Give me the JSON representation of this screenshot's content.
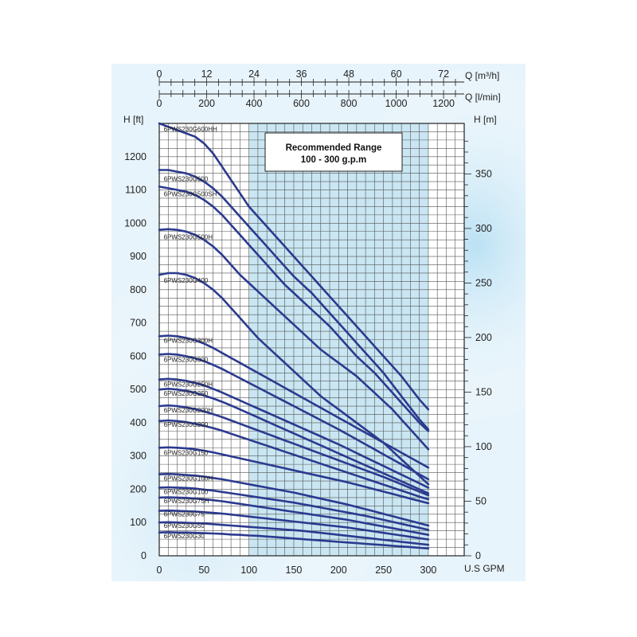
{
  "chart_data": {
    "type": "line",
    "x": [
      0,
      10,
      20,
      30,
      40,
      50,
      60,
      70,
      80,
      90,
      100,
      110,
      120,
      130,
      140,
      150,
      160,
      170,
      180,
      190,
      200,
      210,
      220,
      230,
      240,
      250,
      260,
      270,
      280,
      290,
      300,
      310,
      318
    ],
    "xlabel": "U.S GPM",
    "ylabel": "H [ft]",
    "y2label": "H [m]",
    "top_axis_m3h_label": "Q [m³/h]",
    "top_axis_lmin_label": "Q [l/min]",
    "xlim": [
      0,
      340
    ],
    "ylim": [
      0,
      1300
    ],
    "x_ticks": [
      "0",
      "50",
      "100",
      "150",
      "200",
      "250",
      "300"
    ],
    "y_ticks": [
      "0",
      "100",
      "200",
      "300",
      "400",
      "500",
      "600",
      "700",
      "800",
      "900",
      "1000",
      "1100",
      "1200"
    ],
    "y2_ticks": [
      "0",
      "50",
      "100",
      "150",
      "200",
      "250",
      "300",
      "350"
    ],
    "top_m3h_ticks": [
      "0",
      "12",
      "24",
      "36",
      "48",
      "60",
      "72"
    ],
    "top_lmin_ticks": [
      "0",
      "200",
      "400",
      "600",
      "800",
      "1000",
      "1200"
    ],
    "recommended_range": {
      "title": "Recommended Range",
      "subtitle": "100 - 300 g.p.m",
      "x_range": [
        100,
        300
      ],
      "fill_color": "#c9e6f2"
    },
    "grid": true,
    "line_color": "#2b3a8f",
    "series": [
      {
        "name": "6PWS230G600HH",
        "values": [
          1300,
          1290,
          1280,
          1270,
          1260,
          1240,
          1210,
          1170,
          1130,
          1090,
          1050,
          1020,
          990,
          960,
          930,
          900,
          870,
          840,
          810,
          780,
          750,
          720,
          690,
          660,
          630,
          600,
          570,
          540,
          505,
          470,
          440,
          null,
          null
        ]
      },
      {
        "name": "6PWS230G600",
        "values": [
          1160,
          1160,
          1155,
          1150,
          1140,
          1125,
          1105,
          1080,
          1050,
          1020,
          990,
          960,
          930,
          900,
          870,
          840,
          815,
          790,
          760,
          730,
          700,
          670,
          640,
          610,
          580,
          550,
          515,
          480,
          445,
          410,
          380,
          null,
          null
        ]
      },
      {
        "name": "6PWS230G500SH",
        "values": [
          1110,
          1105,
          1100,
          1095,
          1085,
          1070,
          1050,
          1025,
          995,
          965,
          935,
          905,
          875,
          845,
          815,
          790,
          765,
          740,
          715,
          690,
          660,
          630,
          600,
          575,
          550,
          520,
          490,
          460,
          430,
          400,
          375,
          null,
          null
        ]
      },
      {
        "name": "6PWS230G500H",
        "values": [
          980,
          982,
          980,
          975,
          965,
          950,
          930,
          905,
          875,
          845,
          820,
          795,
          770,
          745,
          720,
          695,
          670,
          645,
          620,
          600,
          580,
          560,
          540,
          515,
          490,
          465,
          440,
          410,
          380,
          350,
          320,
          null,
          null
        ]
      },
      {
        "name": "6PWS230G400",
        "values": [
          845,
          850,
          850,
          845,
          835,
          820,
          800,
          775,
          745,
          715,
          685,
          655,
          630,
          605,
          580,
          555,
          530,
          505,
          480,
          460,
          440,
          420,
          400,
          380,
          360,
          340,
          315,
          290,
          265,
          240,
          215,
          null,
          null
        ]
      },
      {
        "name": "6PWS230G300H",
        "values": [
          660,
          662,
          660,
          655,
          648,
          638,
          625,
          610,
          595,
          580,
          565,
          550,
          535,
          520,
          505,
          490,
          475,
          460,
          445,
          430,
          415,
          400,
          385,
          370,
          355,
          340,
          325,
          310,
          295,
          280,
          265,
          null,
          null
        ]
      },
      {
        "name": "6PWS230G300",
        "values": [
          605,
          607,
          605,
          600,
          594,
          585,
          574,
          562,
          548,
          534,
          520,
          506,
          492,
          478,
          464,
          450,
          436,
          422,
          408,
          394,
          380,
          365,
          350,
          335,
          320,
          305,
          290,
          275,
          260,
          245,
          230,
          null,
          null
        ]
      },
      {
        "name": "6PWS230G250H",
        "values": [
          530,
          532,
          530,
          526,
          520,
          512,
          502,
          491,
          479,
          467,
          455,
          443,
          431,
          419,
          407,
          395,
          383,
          371,
          359,
          347,
          335,
          322,
          309,
          296,
          283,
          270,
          257,
          244,
          231,
          218,
          205,
          null,
          null
        ]
      },
      {
        "name": "6PWS230G250",
        "values": [
          500,
          502,
          500,
          496,
          490,
          482,
          473,
          463,
          452,
          440,
          428,
          416,
          404,
          392,
          380,
          368,
          356,
          344,
          332,
          320,
          308,
          296,
          284,
          272,
          260,
          248,
          236,
          224,
          212,
          200,
          188,
          null,
          null
        ]
      },
      {
        "name": "6PWS230G200H",
        "values": [
          450,
          452,
          450,
          446,
          441,
          434,
          426,
          417,
          407,
          397,
          387,
          377,
          367,
          357,
          347,
          337,
          327,
          317,
          307,
          297,
          287,
          277,
          267,
          257,
          247,
          237,
          226,
          215,
          204,
          193,
          182,
          null,
          null
        ]
      },
      {
        "name": "6PWS230G200",
        "values": [
          405,
          407,
          405,
          402,
          397,
          391,
          384,
          376,
          367,
          358,
          349,
          340,
          331,
          322,
          313,
          304,
          295,
          286,
          277,
          268,
          259,
          250,
          241,
          232,
          223,
          214,
          205,
          196,
          187,
          178,
          170,
          null,
          null
        ]
      },
      {
        "name": "6PWS230G150",
        "values": [
          325,
          326,
          325,
          323,
          320,
          316,
          311,
          305,
          299,
          293,
          287,
          281,
          275,
          269,
          263,
          257,
          251,
          245,
          239,
          233,
          227,
          221,
          214,
          207,
          200,
          193,
          186,
          179,
          172,
          165,
          158,
          null,
          null
        ]
      },
      {
        "name": "6PWS230G100H",
        "values": [
          245,
          246,
          245,
          243,
          241,
          238,
          234,
          230,
          225,
          220,
          215,
          210,
          205,
          200,
          195,
          190,
          184,
          178,
          172,
          166,
          160,
          154,
          147,
          140,
          133,
          126,
          119,
          112,
          105,
          98,
          91,
          null,
          null
        ]
      },
      {
        "name": "6PWS230G100",
        "values": [
          205,
          206,
          205,
          204,
          202,
          199,
          196,
          192,
          188,
          184,
          180,
          176,
          172,
          168,
          164,
          160,
          155,
          150,
          145,
          140,
          135,
          130,
          125,
          120,
          114,
          108,
          102,
          96,
          90,
          84,
          78,
          null,
          null
        ]
      },
      {
        "name": "6PWS230G75H",
        "values": [
          175,
          176,
          175,
          174,
          172,
          170,
          167,
          164,
          160,
          156,
          152,
          148,
          144,
          140,
          136,
          132,
          128,
          124,
          120,
          116,
          112,
          108,
          103,
          98,
          93,
          88,
          83,
          78,
          73,
          68,
          63,
          null,
          null
        ]
      },
      {
        "name": "6PWS230G75",
        "values": [
          135,
          136,
          135,
          134,
          133,
          131,
          129,
          127,
          124,
          121,
          118,
          115,
          112,
          109,
          106,
          103,
          100,
          97,
          94,
          91,
          88,
          85,
          81,
          77,
          73,
          69,
          65,
          61,
          57,
          53,
          49,
          null,
          null
        ]
      },
      {
        "name": "6PWS230G50",
        "values": [
          100,
          101,
          100,
          99,
          98,
          97,
          95,
          93,
          91,
          89,
          87,
          85,
          83,
          81,
          79,
          77,
          75,
          72,
          69,
          66,
          63,
          60,
          57,
          54,
          51,
          48,
          45,
          42,
          39,
          36,
          33,
          null,
          null
        ]
      },
      {
        "name": "6PWS230G30",
        "values": [
          70,
          71,
          70,
          70,
          69,
          68,
          67,
          66,
          64,
          63,
          61,
          60,
          58,
          56,
          54,
          52,
          50,
          48,
          46,
          44,
          42,
          40,
          38,
          36,
          34,
          32,
          30,
          28,
          26,
          24,
          22,
          null,
          null
        ]
      }
    ]
  }
}
